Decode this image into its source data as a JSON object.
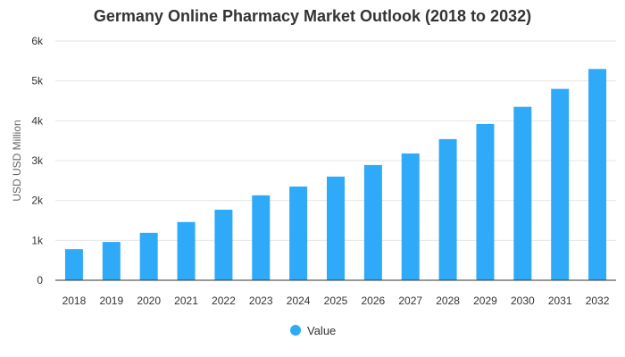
{
  "chart_data": {
    "type": "bar",
    "title": "Germany Online Pharmacy Market Outlook (2018 to 2032)",
    "ylabel": "USD USD Million",
    "xlabel": "",
    "categories": [
      "2018",
      "2019",
      "2020",
      "2021",
      "2022",
      "2023",
      "2024",
      "2025",
      "2026",
      "2027",
      "2028",
      "2029",
      "2030",
      "2031",
      "2032"
    ],
    "series": [
      {
        "name": "Value",
        "color": "#2eaaf8",
        "values": [
          780,
          960,
          1190,
          1460,
          1770,
          2130,
          2350,
          2600,
          2890,
          3180,
          3540,
          3920,
          4350,
          4800,
          5300
        ]
      }
    ],
    "ylim": [
      0,
      6000
    ],
    "yticks": [
      0,
      1000,
      2000,
      3000,
      4000,
      5000,
      6000
    ],
    "ytick_labels": [
      "0",
      "1k",
      "2k",
      "3k",
      "4k",
      "5k",
      "6k"
    ],
    "grid": true,
    "legend": "bottom-center"
  }
}
